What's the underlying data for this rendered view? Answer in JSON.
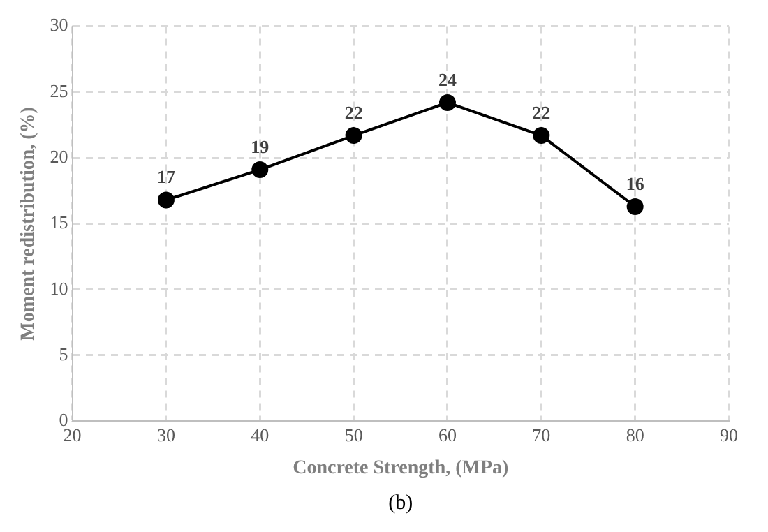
{
  "chart_data": {
    "type": "line",
    "xlabel": "Concrete Strength, (MPa)",
    "ylabel": "Moment redistribution, (%)",
    "annotations": [
      "(b)"
    ],
    "x": [
      30,
      40,
      50,
      60,
      70,
      80
    ],
    "series": [
      {
        "color": "#000000",
        "values": [
          16.8,
          19.1,
          21.7,
          24.2,
          21.7,
          16.3
        ],
        "value_labels": [
          "17",
          "19",
          "22",
          "24",
          "22",
          "16"
        ]
      }
    ],
    "xlim": [
      20,
      90
    ],
    "xticks": [
      20,
      30,
      40,
      50,
      60,
      70,
      80,
      90
    ],
    "ylim": [
      0,
      30
    ],
    "yticks": [
      0,
      5,
      10,
      15,
      20,
      25,
      30
    ],
    "grid": true,
    "marker": "circle",
    "line_style": "solid",
    "legend": false
  }
}
